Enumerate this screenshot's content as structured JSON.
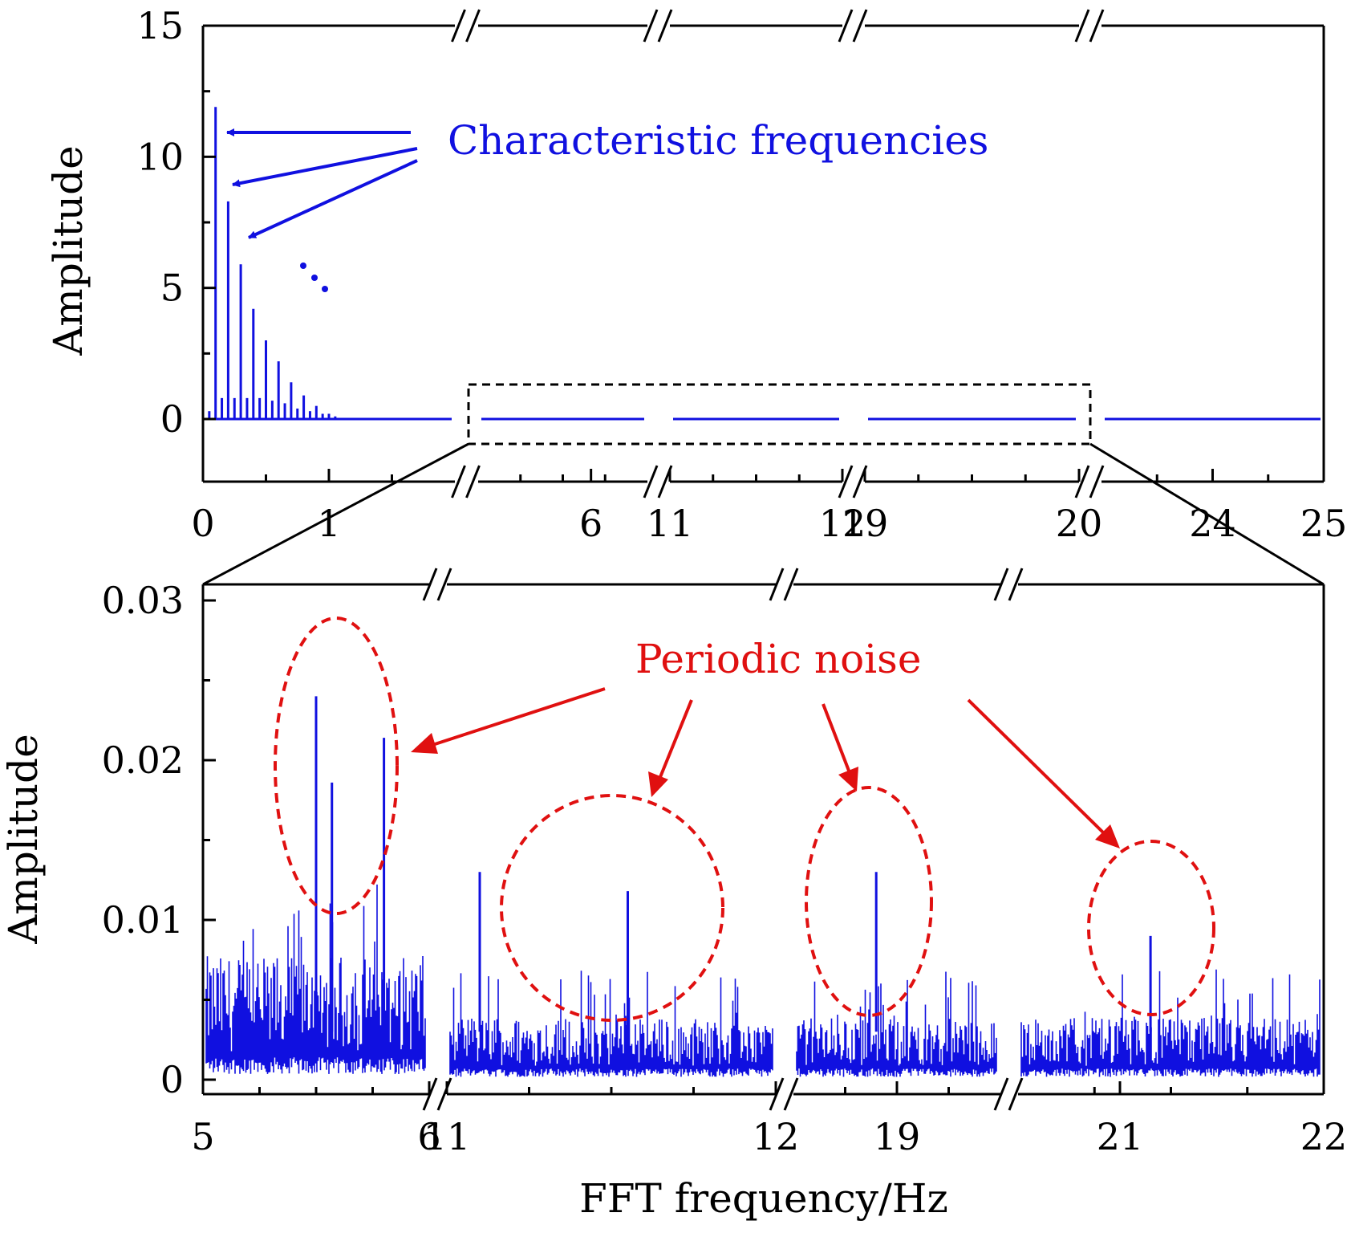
{
  "colors": {
    "series": "#1010e0",
    "annotation_blue": "#1010e0",
    "annotation_red": "#e01010",
    "axis": "#000000"
  },
  "chart_data": [
    {
      "type": "line",
      "panel": "top",
      "ylabel": "Amplitude",
      "ylim": [
        -2.5,
        15
      ],
      "yticks": [
        "15",
        "10",
        "5",
        "0"
      ],
      "ytick_values": [
        15,
        10,
        5,
        0
      ],
      "x_axis_breaks": true,
      "x_segments": [
        {
          "ticks": [
            "0",
            "1"
          ],
          "range": [
            0,
            2
          ]
        },
        {
          "ticks": [
            "6"
          ],
          "range": [
            5,
            6.5
          ]
        },
        {
          "ticks": [
            "11",
            "12"
          ],
          "range": [
            11,
            12
          ]
        },
        {
          "ticks": [
            "19",
            "20"
          ],
          "range": [
            19,
            20
          ]
        },
        {
          "ticks": [
            "24",
            "25"
          ],
          "range": [
            23,
            25
          ]
        }
      ],
      "x_tick_labels": [
        "0",
        "1",
        "6",
        "11",
        "12",
        "19",
        "20",
        "24",
        "25"
      ],
      "peaks": [
        {
          "x": 0.1,
          "y": 11.9
        },
        {
          "x": 0.2,
          "y": 8.3
        },
        {
          "x": 0.3,
          "y": 5.9
        },
        {
          "x": 0.4,
          "y": 4.2
        },
        {
          "x": 0.5,
          "y": 3.0
        },
        {
          "x": 0.6,
          "y": 2.2
        },
        {
          "x": 0.7,
          "y": 1.4
        },
        {
          "x": 0.8,
          "y": 0.9
        },
        {
          "x": 0.9,
          "y": 0.5
        }
      ],
      "minor_peaks": [
        {
          "x": 0.05,
          "y": 0.3
        },
        {
          "x": 0.15,
          "y": 0.8
        },
        {
          "x": 0.25,
          "y": 0.8
        },
        {
          "x": 0.35,
          "y": 0.8
        },
        {
          "x": 0.45,
          "y": 0.8
        },
        {
          "x": 0.55,
          "y": 0.7
        },
        {
          "x": 0.65,
          "y": 0.6
        },
        {
          "x": 0.75,
          "y": 0.4
        },
        {
          "x": 0.85,
          "y": 0.3
        },
        {
          "x": 0.95,
          "y": 0.2
        },
        {
          "x": 1.0,
          "y": 0.2
        },
        {
          "x": 1.05,
          "y": 0.1
        }
      ],
      "annotation": "Characteristic frequencies",
      "continuation_mark": "..."
    },
    {
      "type": "line",
      "panel": "bottom",
      "ylabel": "Amplitude",
      "xlabel": "FFT frequency/Hz",
      "ylim": [
        -0.0005,
        0.031
      ],
      "yticks": [
        "0.03",
        "0.02",
        "0.01",
        "0"
      ],
      "ytick_values": [
        0.03,
        0.02,
        0.01,
        0
      ],
      "x_axis_breaks": true,
      "x_segments": [
        {
          "ticks": [
            "5",
            "6"
          ],
          "range": [
            5,
            6
          ]
        },
        {
          "ticks": [
            "11",
            "12"
          ],
          "range": [
            11,
            12
          ]
        },
        {
          "ticks": [
            "19"
          ],
          "range": [
            18.5,
            19.5
          ]
        },
        {
          "ticks": [
            "21",
            "22"
          ],
          "range": [
            20.5,
            22
          ]
        }
      ],
      "x_tick_labels": [
        "5",
        "6",
        "11",
        "12",
        "19",
        "21",
        "22"
      ],
      "noise_floor": [
        {
          "segment": 1,
          "mean": 0.005,
          "max": 0.0125
        },
        {
          "segment": 2,
          "mean": 0.0025,
          "max": 0.007
        },
        {
          "segment": 3,
          "mean": 0.0025,
          "max": 0.007
        },
        {
          "segment": 4,
          "mean": 0.0025,
          "max": 0.007
        }
      ],
      "noise_peaks": [
        {
          "segment": 1,
          "x": 5.5,
          "y": 0.024
        },
        {
          "segment": 1,
          "x": 5.57,
          "y": 0.0186
        },
        {
          "segment": 1,
          "x": 5.8,
          "y": 0.0214
        },
        {
          "segment": 2,
          "x": 11.1,
          "y": 0.013
        },
        {
          "segment": 2,
          "x": 11.55,
          "y": 0.0118
        },
        {
          "segment": 3,
          "x": 18.9,
          "y": 0.013
        },
        {
          "segment": 4,
          "x": 21.15,
          "y": 0.009
        }
      ],
      "annotation": "Periodic noise"
    }
  ]
}
